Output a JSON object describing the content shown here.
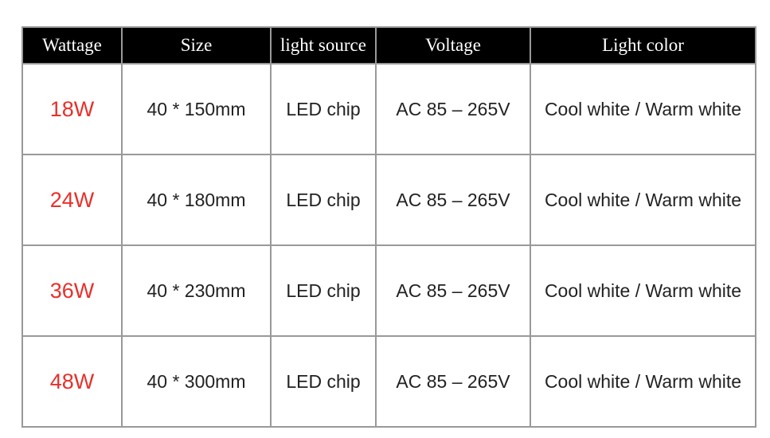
{
  "headers": [
    "Wattage",
    "Size",
    "light source",
    "Voltage",
    "Light color"
  ],
  "rows": [
    [
      "18W",
      "40 * 150mm",
      "LED chip",
      "AC 85 – 265V",
      "Cool white / Warm white"
    ],
    [
      "24W",
      "40 * 180mm",
      "LED chip",
      "AC 85 – 265V",
      "Cool white / Warm white"
    ],
    [
      "36W",
      "40 * 230mm",
      "LED chip",
      "AC 85 – 265V",
      "Cool white / Warm white"
    ],
    [
      "48W",
      "40 * 300mm",
      "LED chip",
      "AC 85 – 265V",
      "Cool white / Warm white"
    ]
  ],
  "colors": {
    "header_bg": "#000000",
    "wattage_text": "#e8302a",
    "border": "#999999"
  }
}
